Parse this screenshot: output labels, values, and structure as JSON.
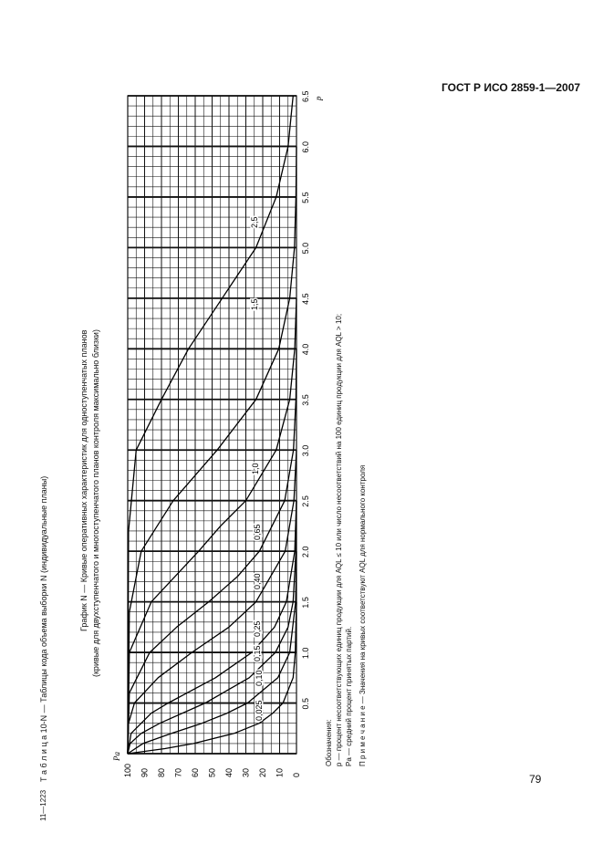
{
  "header": {
    "standard": "ГОСТ Р ИСО 2859-1—2007"
  },
  "footer": {
    "page_number": "79",
    "print_code": "11—1223"
  },
  "table_title": "Т а б л и ц а  10-N — Таблицы кода объема выборки N (индивидуальные планы)",
  "graph_title": "График N — Кривые оперативных характеристик для одноступенчатых планов",
  "graph_subtitle": "(кривые для двухступенчатого и многоступенчатого планов контроля максимально близки)",
  "legend_notes": {
    "heading": "Обозначения:",
    "p_line": "p — процент несоответствующих единиц продукции для AQL ≤ 10 или число несоответствий на 100 единиц продукции для AQL > 10;",
    "pa_line": "Pа — средний процент принятых партий.",
    "note": "П р и м е ч а н и е — Значения на кривых соответствуют AQL для нормального контроля"
  },
  "chart_data": {
    "type": "line",
    "orientation": "rotated 90° counter-clockwise",
    "xlabel": "p",
    "ylabel": "Pа",
    "xlim": [
      0,
      6.5
    ],
    "ylim": [
      0,
      100
    ],
    "x_ticks": [
      "0.5",
      "1.0",
      "1.5",
      "2.0",
      "2.5",
      "3.0",
      "3.5",
      "4.0",
      "4.5",
      "5.0",
      "5.5",
      "6.0",
      "6.5"
    ],
    "y_ticks": [
      "100",
      "90",
      "80",
      "70",
      "60",
      "50",
      "40",
      "30",
      "20",
      "10",
      "0"
    ],
    "grid": true,
    "series": [
      {
        "name": "0,025",
        "points": [
          [
            0,
            100
          ],
          [
            0.05,
            78
          ],
          [
            0.1,
            61
          ],
          [
            0.2,
            37
          ],
          [
            0.3,
            22
          ],
          [
            0.4,
            14
          ],
          [
            0.5,
            8
          ],
          [
            0.75,
            2
          ],
          [
            1.0,
            0.7
          ],
          [
            1.5,
            0
          ]
        ]
      },
      {
        "name": "0,10",
        "points": [
          [
            0,
            100
          ],
          [
            0.1,
            91
          ],
          [
            0.2,
            74
          ],
          [
            0.3,
            56
          ],
          [
            0.4,
            41
          ],
          [
            0.5,
            29
          ],
          [
            0.75,
            11
          ],
          [
            1.0,
            4
          ],
          [
            1.5,
            0.5
          ],
          [
            2.0,
            0
          ]
        ]
      },
      {
        "name": "0,15",
        "points": [
          [
            0,
            100
          ],
          [
            0.1,
            98.6
          ],
          [
            0.2,
            92
          ],
          [
            0.3,
            81
          ],
          [
            0.5,
            54
          ],
          [
            0.75,
            28
          ],
          [
            1.0,
            12.5
          ],
          [
            1.25,
            5
          ],
          [
            1.5,
            2
          ],
          [
            2.0,
            0.3
          ],
          [
            2.5,
            0
          ]
        ]
      },
      {
        "name": "0,25",
        "points": [
          [
            0,
            100
          ],
          [
            0.2,
            98
          ],
          [
            0.4,
            86
          ],
          [
            0.5,
            76
          ],
          [
            0.75,
            48
          ],
          [
            1.0,
            26.5
          ],
          [
            1.25,
            13
          ],
          [
            1.5,
            6
          ],
          [
            2.0,
            1
          ],
          [
            2.5,
            0
          ]
        ]
      },
      {
        "name": "0,40",
        "points": [
          [
            0,
            100
          ],
          [
            0.3,
            99.5
          ],
          [
            0.5,
            96
          ],
          [
            0.75,
            82
          ],
          [
            1.0,
            62
          ],
          [
            1.25,
            40
          ],
          [
            1.5,
            24
          ],
          [
            2.0,
            6.7
          ],
          [
            2.5,
            1.5
          ],
          [
            3.0,
            0
          ]
        ]
      },
      {
        "name": "0,65",
        "points": [
          [
            0,
            100
          ],
          [
            0.6,
            99
          ],
          [
            1.0,
            87
          ],
          [
            1.25,
            71
          ],
          [
            1.5,
            52
          ],
          [
            1.75,
            35
          ],
          [
            2.0,
            22
          ],
          [
            2.5,
            7
          ],
          [
            3.0,
            1.8
          ],
          [
            3.5,
            0.3
          ],
          [
            4.0,
            0
          ]
        ]
      },
      {
        "name": "1,0",
        "points": [
          [
            0,
            100
          ],
          [
            1.0,
            99
          ],
          [
            1.5,
            86
          ],
          [
            2.0,
            58
          ],
          [
            2.25,
            45
          ],
          [
            2.5,
            30
          ],
          [
            3.0,
            12
          ],
          [
            3.5,
            4
          ],
          [
            4.0,
            1
          ],
          [
            4.5,
            0
          ]
        ]
      },
      {
        "name": "1,5",
        "points": [
          [
            0,
            100
          ],
          [
            1.4,
            99
          ],
          [
            2.0,
            92
          ],
          [
            2.5,
            73
          ],
          [
            3.0,
            47
          ],
          [
            3.5,
            24
          ],
          [
            4.0,
            10.5
          ],
          [
            4.5,
            4
          ],
          [
            5.0,
            1.2
          ],
          [
            5.5,
            0.3
          ],
          [
            6.0,
            0
          ]
        ]
      },
      {
        "name": "2,5",
        "points": [
          [
            0,
            100
          ],
          [
            2.2,
            99.5
          ],
          [
            3.0,
            95
          ],
          [
            3.5,
            80
          ],
          [
            4.0,
            64
          ],
          [
            4.5,
            44
          ],
          [
            5.0,
            24
          ],
          [
            5.5,
            12
          ],
          [
            6.0,
            5
          ],
          [
            6.5,
            2
          ]
        ]
      }
    ]
  }
}
